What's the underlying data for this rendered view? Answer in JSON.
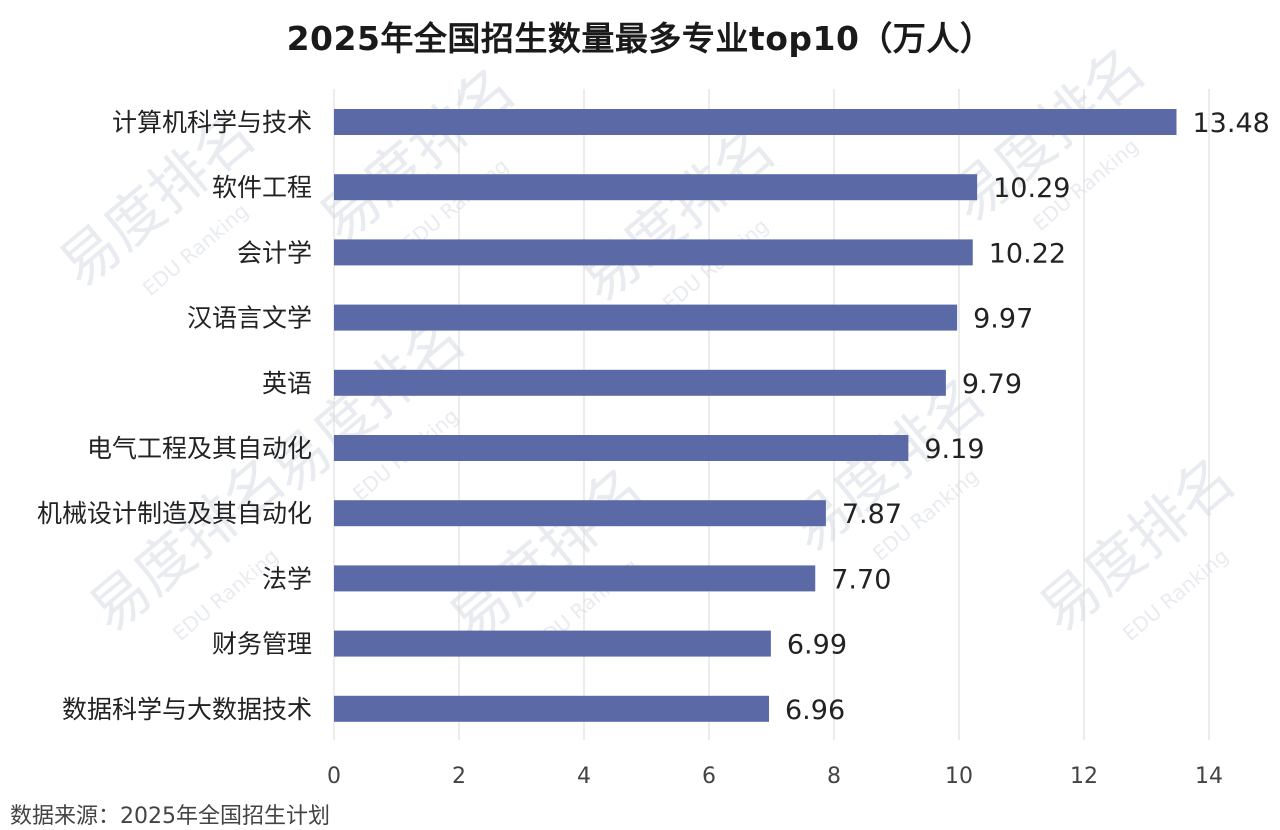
{
  "chart_data": {
    "type": "bar",
    "orientation": "horizontal",
    "title": "2025年全国招生数量最多专业top10（万人）",
    "categories": [
      "计算机科学与技术",
      "软件工程",
      "会计学",
      "汉语言文学",
      "英语",
      "电气工程及其自动化",
      "机械设计制造及其自动化",
      "法学",
      "财务管理",
      "数据科学与大数据技术"
    ],
    "values": [
      13.48,
      10.29,
      10.22,
      9.97,
      9.79,
      9.19,
      7.87,
      7.7,
      6.99,
      6.96
    ],
    "value_labels": [
      "13.48",
      "10.29",
      "10.22",
      "9.97",
      "9.79",
      "9.19",
      "7.87",
      "7.70",
      "6.99",
      "6.96"
    ],
    "xlim": [
      0,
      14
    ],
    "xticks": [
      0,
      2,
      4,
      6,
      8,
      10,
      12,
      14
    ],
    "xlabel": "",
    "ylabel": "",
    "grid": true,
    "bar_color": "#5b6aa6",
    "grid_color": "#d9d9d9"
  },
  "source_note": "数据来源：2025年全国招生计划",
  "watermark": {
    "brand": "易度排名",
    "brand_en": "EDU Ranking"
  }
}
